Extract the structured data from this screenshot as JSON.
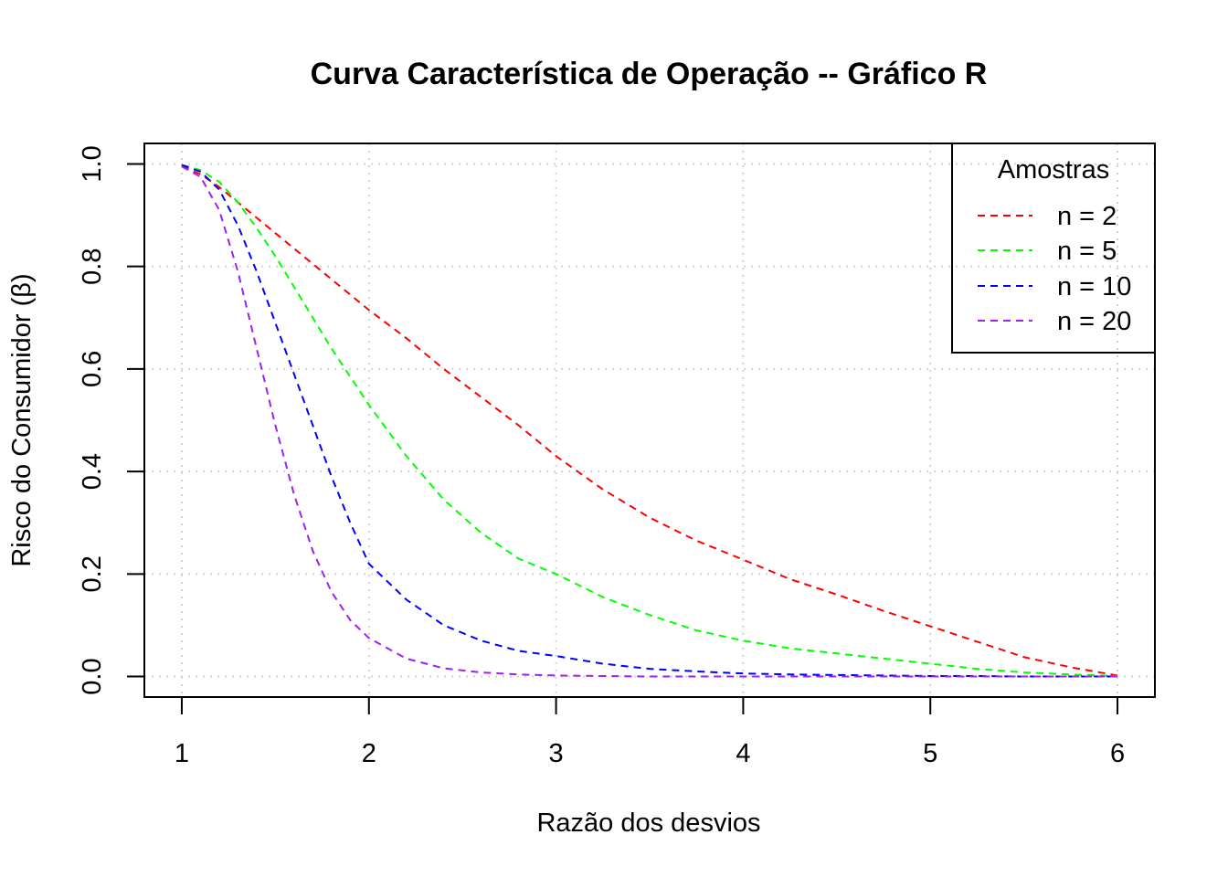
{
  "chart_data": {
    "type": "line",
    "title": "Curva Característica de Operação -- Gráfico R",
    "xlabel": "Razão dos desvios",
    "ylabel": "Risco do Consumidor (β)",
    "xlim": [
      0.8,
      6.2
    ],
    "ylim": [
      -0.04,
      1.04
    ],
    "x_ticks": [
      1,
      2,
      3,
      4,
      5,
      6
    ],
    "x_tick_labels": [
      "1",
      "2",
      "3",
      "4",
      "5",
      "6"
    ],
    "y_ticks": [
      0,
      0.2,
      0.4,
      0.6,
      0.8,
      1.0
    ],
    "y_tick_labels": [
      "0.0",
      "0.2",
      "0.4",
      "0.6",
      "0.8",
      "1.0"
    ],
    "grid": true,
    "legend": {
      "title": "Amostras",
      "placement": "top-right"
    },
    "x": [
      1.0,
      1.1,
      1.2,
      1.3,
      1.4,
      1.5,
      1.6,
      1.7,
      1.8,
      1.9,
      2.0,
      2.2,
      2.4,
      2.6,
      2.8,
      3.0,
      3.25,
      3.5,
      3.75,
      4.0,
      4.25,
      4.5,
      4.75,
      5.0,
      5.25,
      5.5,
      5.75,
      6.0
    ],
    "series": [
      {
        "name": "n = 2",
        "color": "#ff0000",
        "values": [
          0.995,
          0.98,
          0.955,
          0.925,
          0.895,
          0.865,
          0.835,
          0.805,
          0.775,
          0.745,
          0.715,
          0.66,
          0.6,
          0.545,
          0.49,
          0.43,
          0.365,
          0.31,
          0.265,
          0.228,
          0.19,
          0.16,
          0.128,
          0.098,
          0.068,
          0.038,
          0.018,
          0.002
        ]
      },
      {
        "name": "n = 5",
        "color": "#00ff00",
        "values": [
          0.998,
          0.988,
          0.965,
          0.925,
          0.875,
          0.82,
          0.76,
          0.7,
          0.64,
          0.585,
          0.53,
          0.43,
          0.345,
          0.28,
          0.23,
          0.2,
          0.155,
          0.12,
          0.09,
          0.07,
          0.055,
          0.045,
          0.035,
          0.025,
          0.015,
          0.008,
          0.004,
          0.001
        ]
      },
      {
        "name": "n = 10",
        "color": "#0000ff",
        "values": [
          0.998,
          0.985,
          0.95,
          0.88,
          0.79,
          0.69,
          0.59,
          0.49,
          0.39,
          0.3,
          0.22,
          0.15,
          0.1,
          0.07,
          0.05,
          0.04,
          0.025,
          0.015,
          0.01,
          0.006,
          0.004,
          0.003,
          0.002,
          0.001,
          0.001,
          0.0,
          0.0,
          0.0
        ]
      },
      {
        "name": "n = 20",
        "color": "#a020f0",
        "values": [
          0.995,
          0.975,
          0.91,
          0.79,
          0.64,
          0.49,
          0.355,
          0.245,
          0.165,
          0.11,
          0.075,
          0.035,
          0.016,
          0.008,
          0.004,
          0.002,
          0.001,
          0.0,
          0.0,
          0.0,
          0.0,
          0.0,
          0.0,
          0.0,
          0.0,
          0.0,
          0.0,
          0.0
        ]
      }
    ]
  }
}
